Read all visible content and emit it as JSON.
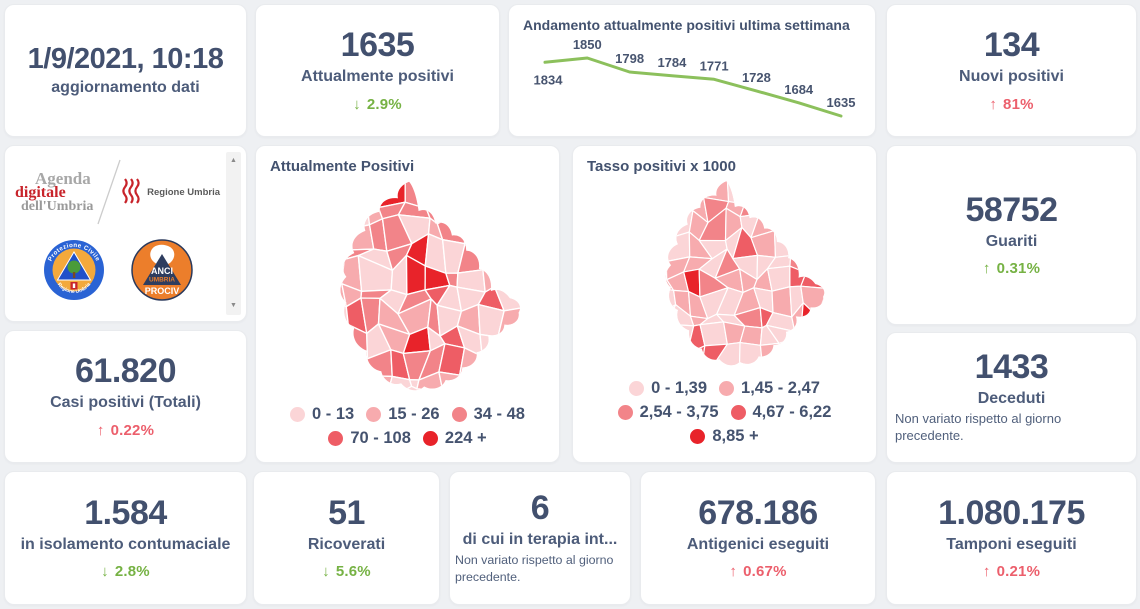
{
  "colors": {
    "green": "#76b244",
    "red": "#ec5f6c",
    "value": "#42506e",
    "label": "#4d5c7a",
    "line": "#8cc05c",
    "map_palette": [
      "#fbd5d7",
      "#f7abae",
      "#f28489",
      "#ee5d65",
      "#e8232a"
    ]
  },
  "updated": {
    "value": "1/9/2021, 10:18",
    "label": "aggiornamento dati"
  },
  "stats": {
    "attualmente_positivi": {
      "value": "1635",
      "label": "Attualmente positivi",
      "arrow": "↓",
      "delta": "2.9%",
      "tone": "green"
    },
    "nuovi_positivi": {
      "value": "134",
      "label": "Nuovi positivi",
      "arrow": "↑",
      "delta": "81%",
      "tone": "red"
    },
    "guariti": {
      "value": "58752",
      "label": "Guariti",
      "arrow": "↑",
      "delta": "0.31%",
      "tone": "green"
    },
    "deceduti": {
      "value": "1433",
      "label": "Deceduti",
      "note": "Non variato rispetto al giorno precedente."
    },
    "casi_totali": {
      "value": "61.820",
      "label": "Casi positivi (Totali)",
      "arrow": "↑",
      "delta": "0.22%",
      "tone": "red"
    },
    "isolamento": {
      "value": "1.584",
      "label": "in isolamento contumaciale",
      "arrow": "↓",
      "delta": "2.8%",
      "tone": "green"
    },
    "ricoverati": {
      "value": "51",
      "label": "Ricoverati",
      "arrow": "↓",
      "delta": "5.6%",
      "tone": "green"
    },
    "terapia_intensiva": {
      "value": "6",
      "label": "di cui in terapia int...",
      "note": "Non variato rispetto al giorno precedente."
    },
    "antigenici": {
      "value": "678.186",
      "label": "Antigenici eseguiti",
      "arrow": "↑",
      "delta": "0.67%",
      "tone": "red"
    },
    "tamponi": {
      "value": "1.080.175",
      "label": "Tamponi eseguiti",
      "arrow": "↑",
      "delta": "0.21%",
      "tone": "red"
    }
  },
  "chart_data": [
    {
      "type": "line",
      "title": "Andamento attualmente positivi ultima settimana",
      "values": [
        1834,
        1850,
        1798,
        1784,
        1771,
        1728,
        1684,
        1635
      ],
      "color": "#8cc05c",
      "data_labels": true,
      "axes": "hidden",
      "legend": "none"
    },
    {
      "type": "choropleth",
      "title": "Attualmente Positivi",
      "region": "Umbria municipalities",
      "legend": [
        {
          "label": "0 - 13",
          "color": "#fbd5d7"
        },
        {
          "label": "15 - 26",
          "color": "#f7abae"
        },
        {
          "label": "34 - 48",
          "color": "#f28489"
        },
        {
          "label": "70 - 108",
          "color": "#ee5d65"
        },
        {
          "label": "224 +",
          "color": "#e8232a"
        }
      ]
    },
    {
      "type": "choropleth",
      "title": "Tasso positivi x 1000",
      "region": "Umbria municipalities",
      "legend": [
        {
          "label": "0 - 1,39",
          "color": "#fbd5d7"
        },
        {
          "label": "1,45 - 2,47",
          "color": "#f7abae"
        },
        {
          "label": "2,54 - 3,75",
          "color": "#f28489"
        },
        {
          "label": "4,67 - 6,22",
          "color": "#ee5d65"
        },
        {
          "label": "8,85 +",
          "color": "#e8232a"
        }
      ]
    }
  ],
  "logos": {
    "agenda": {
      "line1": "Agenda",
      "line2": "digitale",
      "line3": "dell'Umbria"
    },
    "regione_umbria": "Regione Umbria",
    "protezione_civile": {
      "ring_top": "Protezione Civile",
      "ring_bottom": "Regione Umbria"
    },
    "anci": {
      "line1": "ANCI",
      "line2": "UMBRIA",
      "line3": "PROCIV"
    }
  }
}
